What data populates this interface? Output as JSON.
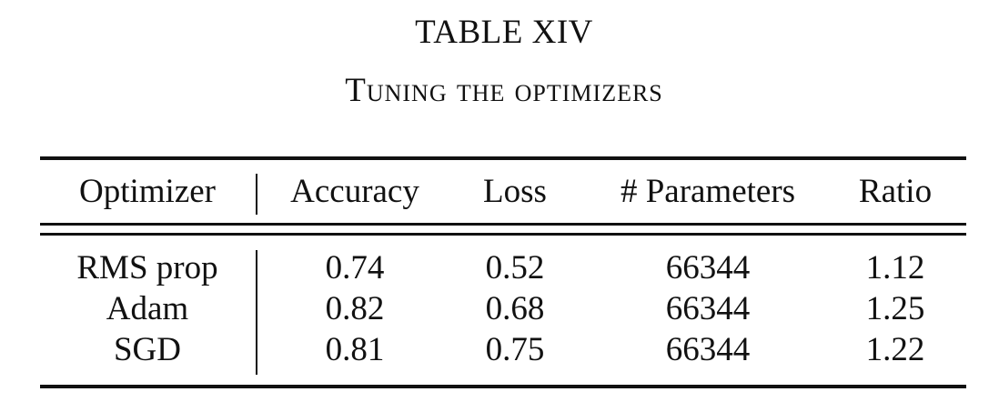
{
  "caption": {
    "number": "TABLE XIV",
    "title": "Tuning the optimizers"
  },
  "table": {
    "headers": [
      "Optimizer",
      "Accuracy",
      "Loss",
      "# Parameters",
      "Ratio"
    ],
    "rows": [
      [
        "RMS prop",
        "0.74",
        "0.52",
        "66344",
        "1.12"
      ],
      [
        "Adam",
        "0.82",
        "0.68",
        "66344",
        "1.25"
      ],
      [
        "SGD",
        "0.81",
        "0.75",
        "66344",
        "1.22"
      ]
    ]
  }
}
